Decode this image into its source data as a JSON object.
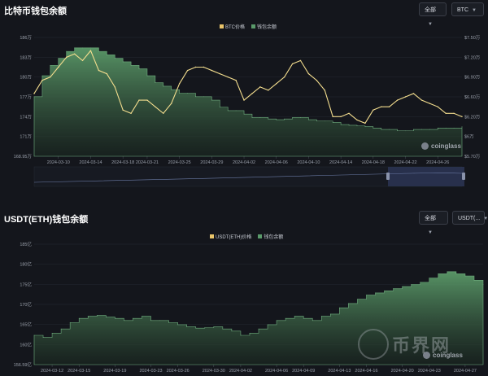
{
  "colors": {
    "bg": "#14161c",
    "price_line": "#f3dd8e",
    "balance_fill": "#4f8a5e",
    "balance_swatch": "#5a9a6a",
    "price_swatch": "#e9c46a",
    "navigator": "#2b3554"
  },
  "panel1": {
    "title": "比特币钱包余额",
    "range_select": "全部",
    "asset_select": "BTC",
    "legend": [
      "BTC价格",
      "钱包余额"
    ],
    "watermark": "coinglass"
  },
  "panel2": {
    "title": "USDT(ETH)钱包余额",
    "range_select": "全部",
    "asset_select": "USDT(...",
    "legend": [
      "USDT(ETH)价格",
      "钱包余额"
    ],
    "watermark": "coinglass",
    "stamp_text": "币界网"
  },
  "chart_data": [
    {
      "type": "line",
      "x": [
        "2024-03-07",
        "2024-03-08",
        "2024-03-09",
        "2024-03-10",
        "2024-03-11",
        "2024-03-12",
        "2024-03-13",
        "2024-03-14",
        "2024-03-15",
        "2024-03-16",
        "2024-03-17",
        "2024-03-18",
        "2024-03-19",
        "2024-03-20",
        "2024-03-21",
        "2024-03-22",
        "2024-03-23",
        "2024-03-24",
        "2024-03-25",
        "2024-03-26",
        "2024-03-27",
        "2024-03-28",
        "2024-03-29",
        "2024-03-30",
        "2024-03-31",
        "2024-04-01",
        "2024-04-02",
        "2024-04-03",
        "2024-04-04",
        "2024-04-05",
        "2024-04-06",
        "2024-04-07",
        "2024-04-08",
        "2024-04-09",
        "2024-04-10",
        "2024-04-11",
        "2024-04-12",
        "2024-04-13",
        "2024-04-14",
        "2024-04-15",
        "2024-04-16",
        "2024-04-17",
        "2024-04-18",
        "2024-04-19",
        "2024-04-20",
        "2024-04-21",
        "2024-04-22",
        "2024-04-23",
        "2024-04-24",
        "2024-04-25",
        "2024-04-26",
        "2024-04-27",
        "2024-04-28",
        "2024-04-29"
      ],
      "xticks": [
        "2024-03-10",
        "2024-03-14",
        "2024-03-18",
        "2024-03-21",
        "2024-03-25",
        "2024-03-29",
        "2024-04-02",
        "2024-04-06",
        "2024-04-10",
        "2024-04-14",
        "2024-04-18",
        "2024-04-22",
        "2024-04-26"
      ],
      "series": [
        {
          "name": "BTC价格",
          "axis": "right",
          "values": [
            6.65,
            6.85,
            6.9,
            7.05,
            7.2,
            7.25,
            7.15,
            7.3,
            7.0,
            6.95,
            6.75,
            6.4,
            6.35,
            6.55,
            6.55,
            6.45,
            6.35,
            6.5,
            6.8,
            7.0,
            7.05,
            7.05,
            7.0,
            6.95,
            6.9,
            6.85,
            6.55,
            6.65,
            6.75,
            6.7,
            6.8,
            6.9,
            7.1,
            7.15,
            6.95,
            6.85,
            6.7,
            6.3,
            6.3,
            6.35,
            6.25,
            6.2,
            6.4,
            6.45,
            6.45,
            6.55,
            6.6,
            6.65,
            6.55,
            6.5,
            6.45,
            6.35,
            6.35,
            6.3
          ]
        },
        {
          "name": "钱包余额",
          "axis": "left",
          "values": [
            177.5,
            180.5,
            182,
            183,
            184,
            184.5,
            184.5,
            184.5,
            184,
            183.5,
            183,
            182.5,
            182,
            181.5,
            180.5,
            179.5,
            179,
            178.5,
            178,
            178,
            177.5,
            177.5,
            177,
            176,
            175.5,
            175.5,
            175,
            174.5,
            174.5,
            174.3,
            174.2,
            174.3,
            174.5,
            174.5,
            174.2,
            174,
            174,
            173.8,
            173.5,
            173.4,
            173.3,
            173.2,
            173,
            172.8,
            172.8,
            172.6,
            172.6,
            172.8,
            172.8,
            172.8,
            173,
            173,
            173,
            173.2
          ]
        }
      ],
      "yticks_left": [
        "186万",
        "183万",
        "180万",
        "177万",
        "174万",
        "171万",
        "168.95万"
      ],
      "yticks_right": [
        "$7.50万",
        "$7.20万",
        "$6.90万",
        "$6.60万",
        "$6.20万",
        "$6万",
        "$5.70万"
      ],
      "ylim_left": [
        168.95,
        186
      ],
      "ylim_right": [
        5.7,
        7.5
      ]
    },
    {
      "type": "area",
      "x": [
        "2024-03-10",
        "2024-03-11",
        "2024-03-12",
        "2024-03-13",
        "2024-03-14",
        "2024-03-15",
        "2024-03-16",
        "2024-03-17",
        "2024-03-18",
        "2024-03-19",
        "2024-03-20",
        "2024-03-21",
        "2024-03-22",
        "2024-03-23",
        "2024-03-24",
        "2024-03-25",
        "2024-03-26",
        "2024-03-27",
        "2024-03-28",
        "2024-03-29",
        "2024-03-30",
        "2024-03-31",
        "2024-04-01",
        "2024-04-02",
        "2024-04-03",
        "2024-04-04",
        "2024-04-05",
        "2024-04-06",
        "2024-04-07",
        "2024-04-08",
        "2024-04-09",
        "2024-04-10",
        "2024-04-11",
        "2024-04-12",
        "2024-04-13",
        "2024-04-14",
        "2024-04-15",
        "2024-04-16",
        "2024-04-17",
        "2024-04-18",
        "2024-04-19",
        "2024-04-20",
        "2024-04-21",
        "2024-04-22",
        "2024-04-23",
        "2024-04-24",
        "2024-04-25",
        "2024-04-26",
        "2024-04-27",
        "2024-04-28",
        "2024-04-29"
      ],
      "xticks": [
        "2024-03-12",
        "2024-03-15",
        "2024-03-19",
        "2024-03-23",
        "2024-03-26",
        "2024-03-30",
        "2024-04-02",
        "2024-04-06",
        "2024-04-09",
        "2024-04-13",
        "2024-04-16",
        "2024-04-20",
        "2024-04-23",
        "2024-04-27"
      ],
      "series": [
        {
          "name": "钱包余额",
          "axis": "left",
          "values": [
            163.5,
            163,
            164,
            165,
            166.5,
            167.5,
            168,
            168.2,
            167.8,
            167.5,
            167,
            167.5,
            168,
            167,
            167,
            166.5,
            166,
            165.5,
            165.2,
            165.3,
            165.5,
            165,
            164.5,
            163.5,
            164,
            165,
            166,
            167,
            167.5,
            168,
            167.5,
            167,
            168,
            168.5,
            170,
            171,
            172,
            173,
            173.5,
            174,
            174.5,
            175,
            175.5,
            176,
            177,
            178,
            178.5,
            178,
            177.5,
            176.5,
            175.5
          ]
        }
      ],
      "yticks_left": [
        "185亿",
        "180亿",
        "175亿",
        "170亿",
        "165亿",
        "160亿",
        "156.59亿"
      ],
      "ylim_left": [
        156.59,
        185
      ]
    }
  ]
}
